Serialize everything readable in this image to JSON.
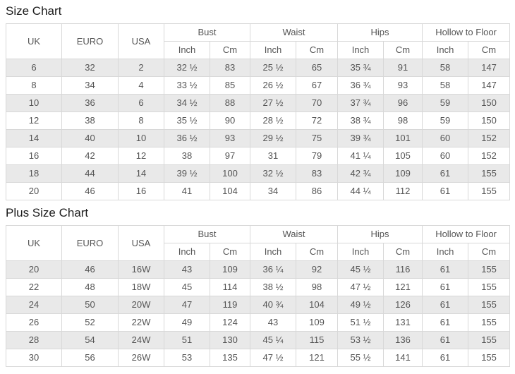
{
  "colors": {
    "stripe": "#e9e9e9",
    "border": "#d8d8d8",
    "text": "#555555",
    "title_text": "#1c1c1c",
    "background": "#ffffff"
  },
  "columns": {
    "uk": "UK",
    "euro": "EURO",
    "usa": "USA",
    "bust": "Bust",
    "waist": "Waist",
    "hips": "Hips",
    "hollow_to_floor": "Hollow to Floor",
    "inch": "Inch",
    "cm": "Cm"
  },
  "size_chart": {
    "title": "Size Chart",
    "rows": [
      [
        "6",
        "32",
        "2",
        "32 ½",
        "83",
        "25 ½",
        "65",
        "35 ¾",
        "91",
        "58",
        "147"
      ],
      [
        "8",
        "34",
        "4",
        "33 ½",
        "85",
        "26 ½",
        "67",
        "36 ¾",
        "93",
        "58",
        "147"
      ],
      [
        "10",
        "36",
        "6",
        "34 ½",
        "88",
        "27 ½",
        "70",
        "37 ¾",
        "96",
        "59",
        "150"
      ],
      [
        "12",
        "38",
        "8",
        "35 ½",
        "90",
        "28 ½",
        "72",
        "38 ¾",
        "98",
        "59",
        "150"
      ],
      [
        "14",
        "40",
        "10",
        "36 ½",
        "93",
        "29 ½",
        "75",
        "39 ¾",
        "101",
        "60",
        "152"
      ],
      [
        "16",
        "42",
        "12",
        "38",
        "97",
        "31",
        "79",
        "41 ¼",
        "105",
        "60",
        "152"
      ],
      [
        "18",
        "44",
        "14",
        "39 ½",
        "100",
        "32 ½",
        "83",
        "42 ¾",
        "109",
        "61",
        "155"
      ],
      [
        "20",
        "46",
        "16",
        "41",
        "104",
        "34",
        "86",
        "44 ¼",
        "112",
        "61",
        "155"
      ]
    ]
  },
  "plus_size_chart": {
    "title": "Plus Size Chart",
    "rows": [
      [
        "20",
        "46",
        "16W",
        "43",
        "109",
        "36 ¼",
        "92",
        "45 ½",
        "116",
        "61",
        "155"
      ],
      [
        "22",
        "48",
        "18W",
        "45",
        "114",
        "38 ½",
        "98",
        "47 ½",
        "121",
        "61",
        "155"
      ],
      [
        "24",
        "50",
        "20W",
        "47",
        "119",
        "40 ¾",
        "104",
        "49 ½",
        "126",
        "61",
        "155"
      ],
      [
        "26",
        "52",
        "22W",
        "49",
        "124",
        "43",
        "109",
        "51 ½",
        "131",
        "61",
        "155"
      ],
      [
        "28",
        "54",
        "24W",
        "51",
        "130",
        "45 ¼",
        "115",
        "53 ½",
        "136",
        "61",
        "155"
      ],
      [
        "30",
        "56",
        "26W",
        "53",
        "135",
        "47 ½",
        "121",
        "55 ½",
        "141",
        "61",
        "155"
      ]
    ]
  }
}
